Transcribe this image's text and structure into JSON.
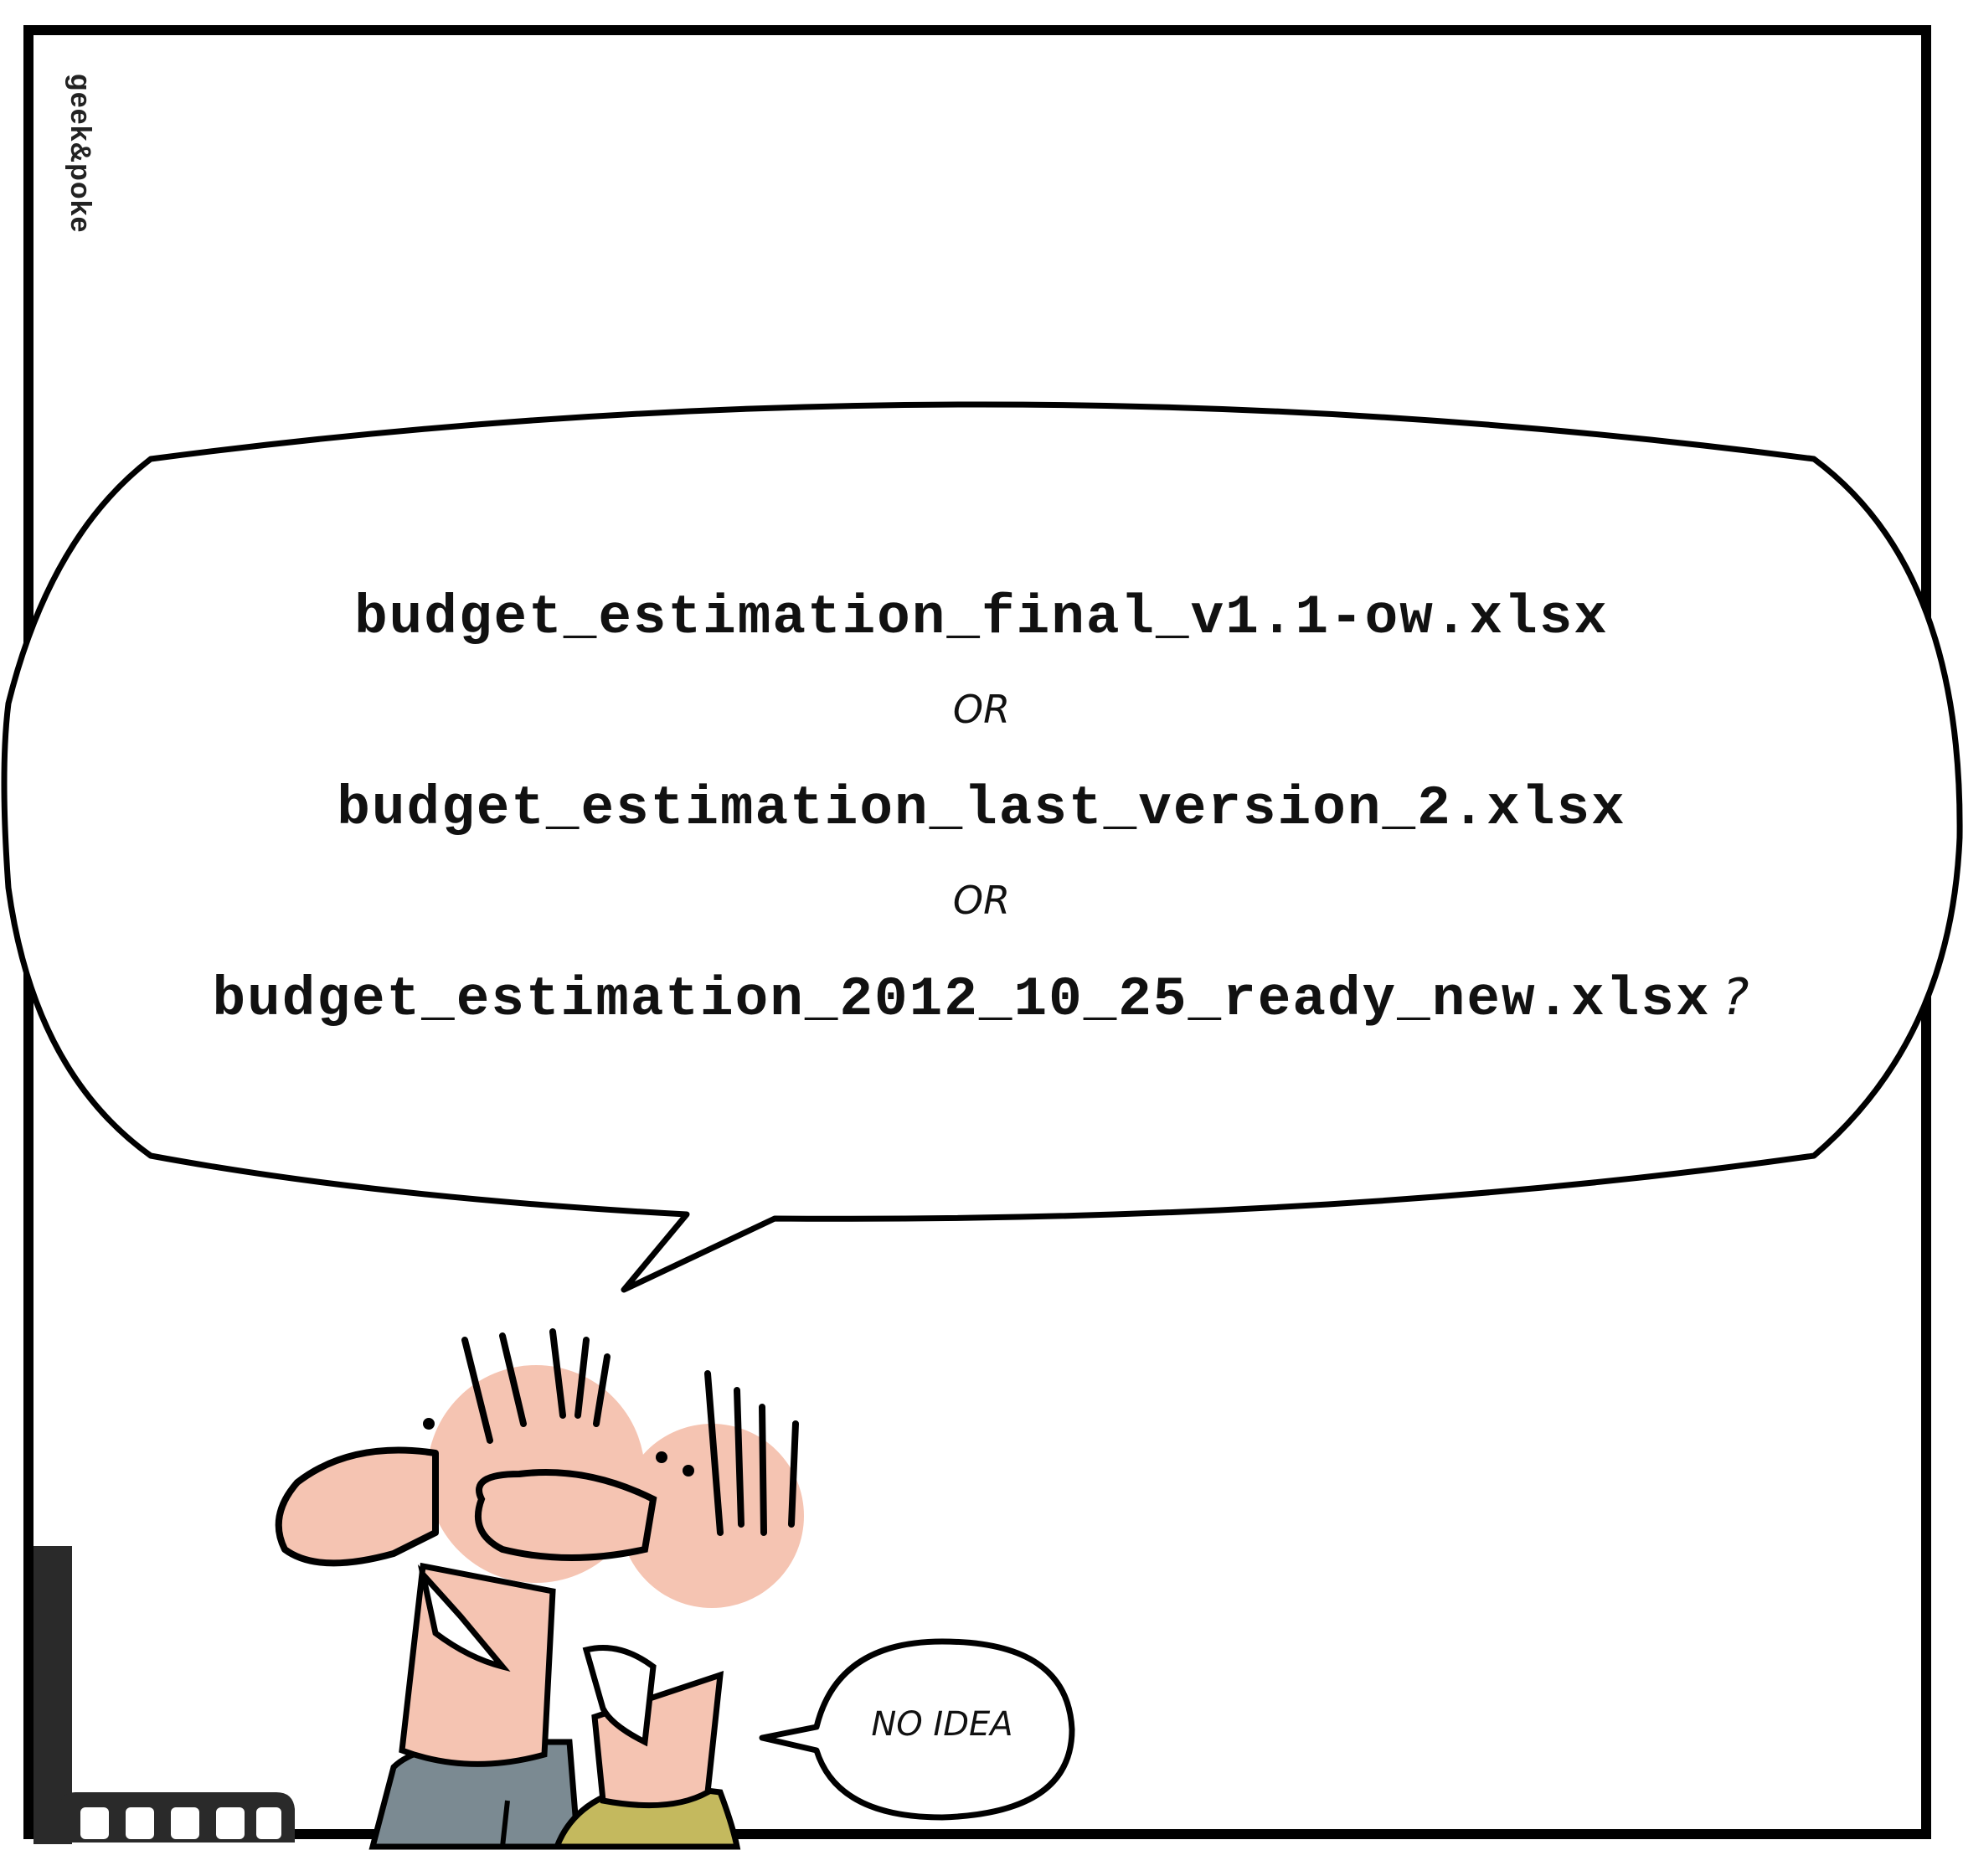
{
  "comic": {
    "credit": "geek&poke",
    "question": {
      "lines": [
        "budget_estimation_final_v1.1-ow.xlsx",
        "budget_estimation_last_version_2.xlsx",
        "budget_estimation_2012_10_25_ready_new.xlsx"
      ],
      "separator": "OR",
      "question_mark": "?"
    },
    "reply": "NO IDEA"
  },
  "colors": {
    "skin": "#f5c4b2",
    "left_shirt": "#7b8a92",
    "right_shirt": "#c4b95e",
    "outline": "#000000"
  }
}
